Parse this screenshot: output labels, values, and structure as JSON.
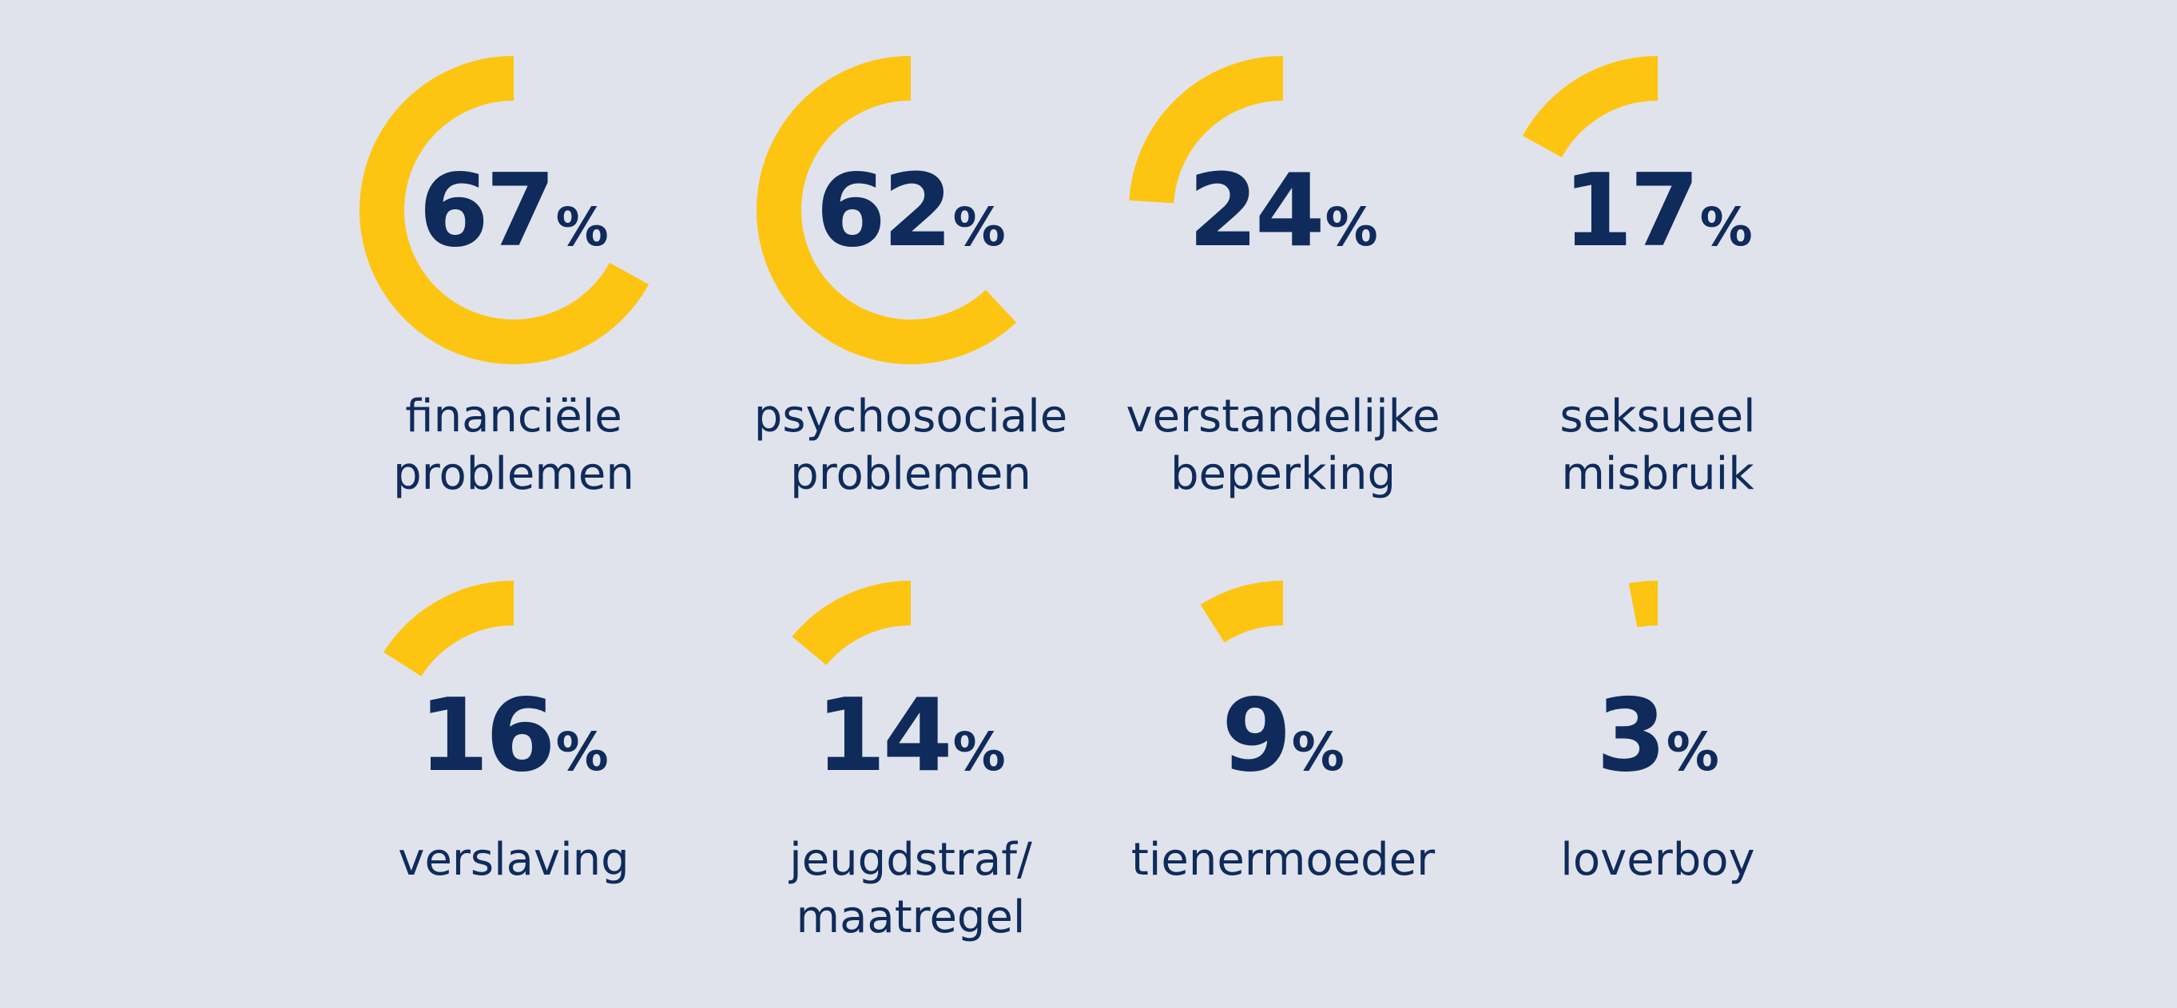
{
  "chart_data": {
    "type": "pie",
    "unit": "%",
    "colors": {
      "background": "#e0e3ec",
      "arc": "#fdc511",
      "text": "#0f2b5b"
    },
    "items": [
      {
        "value": 67,
        "label_lines": [
          "financiële",
          "problemen"
        ]
      },
      {
        "value": 62,
        "label_lines": [
          "psychosociale",
          "problemen"
        ]
      },
      {
        "value": 24,
        "label_lines": [
          "verstandelijke",
          "beperking"
        ]
      },
      {
        "value": 17,
        "label_lines": [
          "seksueel",
          "misbruik"
        ]
      },
      {
        "value": 16,
        "label_lines": [
          "verslaving"
        ]
      },
      {
        "value": 14,
        "label_lines": [
          "jeugdstraf/",
          "maatregel"
        ]
      },
      {
        "value": 9,
        "label_lines": [
          "tienermoeder"
        ]
      },
      {
        "value": 3,
        "label_lines": [
          "loverboy"
        ]
      }
    ]
  }
}
